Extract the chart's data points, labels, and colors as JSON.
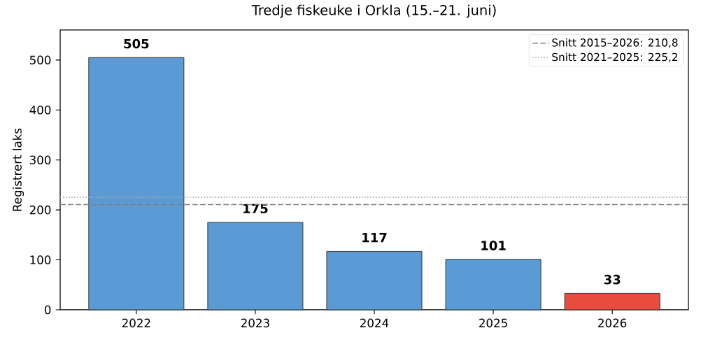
{
  "chart_data": {
    "type": "bar",
    "title": "Tredje fiskeuke i Orkla (15.–21. juni)",
    "ylabel": "Registrert laks",
    "categories": [
      "2022",
      "2023",
      "2024",
      "2025",
      "2026"
    ],
    "values": [
      505,
      175,
      117,
      101,
      33
    ],
    "colors": [
      "#5b9bd5",
      "#5b9bd5",
      "#5b9bd5",
      "#5b9bd5",
      "#e74c3c"
    ],
    "ylim": [
      0,
      560
    ],
    "yticks": [
      0,
      100,
      200,
      300,
      400,
      500
    ],
    "data_labels": true,
    "ref_lines": [
      {
        "axis": "y",
        "value": 210.8,
        "label": "Snitt 2015–2026: 210,8",
        "color": "#808080",
        "line_style": "dashed"
      },
      {
        "axis": "y",
        "value": 225.2,
        "label": "Snitt 2021–2025: 225,2",
        "color": "#a8a8a8",
        "line_style": "dotted"
      }
    ],
    "legend": "top right"
  }
}
